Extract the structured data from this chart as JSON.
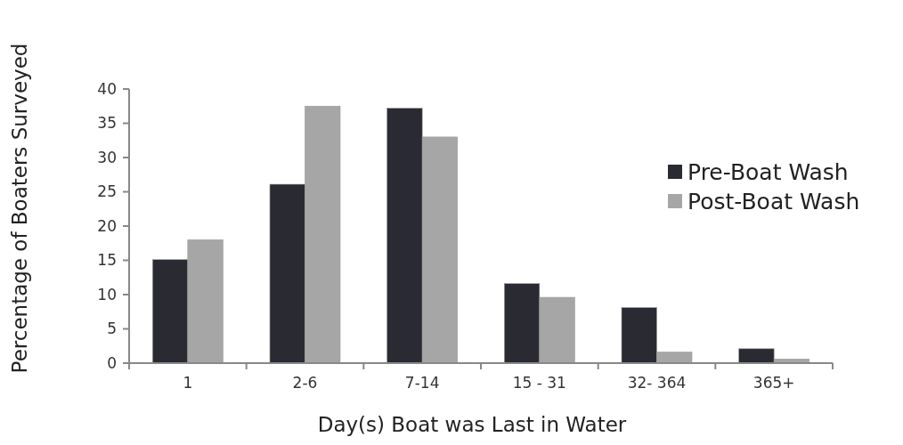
{
  "chart_data": {
    "type": "bar",
    "xlabel": "Day(s) Boat was Last in Water",
    "ylabel": "Percentage of Boaters Surveyed",
    "categories": [
      "1",
      "2-6",
      "7-14",
      "15 - 31",
      "32- 364",
      "365+"
    ],
    "series": [
      {
        "name": "Pre-Boat Wash",
        "color": "#2a2a33",
        "values": [
          15.1,
          26.1,
          37.2,
          11.6,
          8.1,
          2.1
        ]
      },
      {
        "name": "Post-Boat Wash",
        "color": "#a6a6a6",
        "values": [
          18,
          37.5,
          33,
          9.6,
          1.6,
          0.6
        ]
      }
    ],
    "ylim": [
      0,
      40
    ],
    "yticks": [
      0,
      5,
      10,
      15,
      20,
      25,
      30,
      35,
      40
    ],
    "grid": false,
    "legend": "right"
  }
}
